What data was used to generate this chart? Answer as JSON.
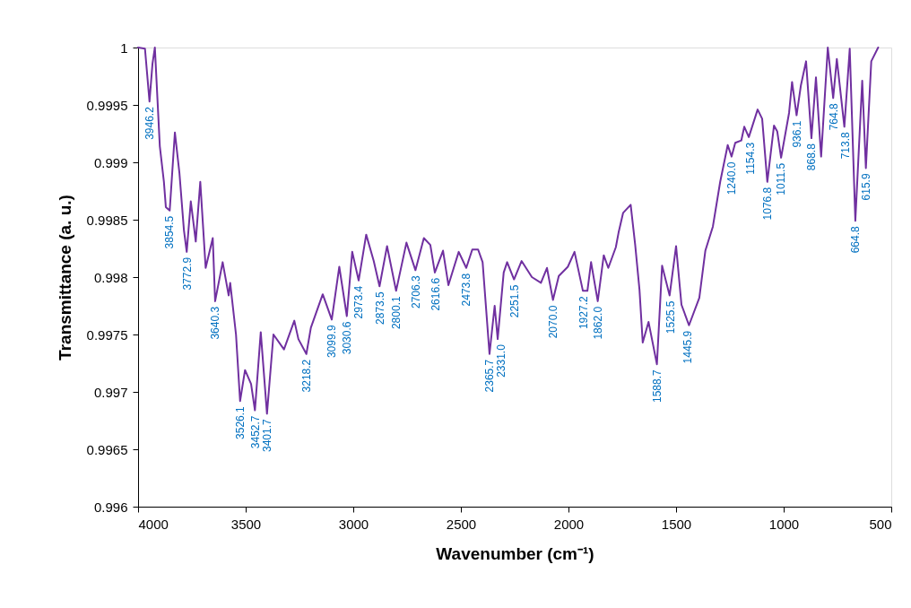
{
  "chart_data": {
    "type": "line",
    "xlabel": "Wavenumber (cm⁻¹)",
    "ylabel": "Transmittance (a. u.)",
    "xlim": [
      4000,
      500
    ],
    "xticks": [
      4000,
      3500,
      3000,
      2500,
      2000,
      1500,
      1000,
      500
    ],
    "ylim": [
      0.996,
      1
    ],
    "yticks": [
      0.996,
      0.9965,
      0.997,
      0.9975,
      0.998,
      0.9985,
      0.999,
      0.9995,
      1
    ],
    "grid": false,
    "marker": "none",
    "line_style": "solid",
    "series": [
      {
        "color": "#7030a0",
        "x": [
          4000,
          3968,
          3947,
          3933,
          3922,
          3899,
          3880,
          3871,
          3853,
          3829,
          3808,
          3787,
          3774,
          3755,
          3732,
          3711,
          3686,
          3653,
          3642,
          3607,
          3579,
          3572,
          3545,
          3526,
          3503,
          3475,
          3457,
          3430,
          3401,
          3371,
          3322,
          3274,
          3255,
          3218,
          3197,
          3142,
          3100,
          3065,
          3030,
          3005,
          2975,
          2940,
          2905,
          2878,
          2843,
          2801,
          2753,
          2711,
          2672,
          2642,
          2621,
          2583,
          2558,
          2510,
          2475,
          2447,
          2420,
          2399,
          2367,
          2343,
          2329,
          2301,
          2285,
          2253,
          2218,
          2170,
          2128,
          2100,
          2072,
          2045,
          2003,
          1972,
          1933,
          1912,
          1895,
          1864,
          1836,
          1815,
          1780,
          1767,
          1746,
          1711,
          1690,
          1670,
          1655,
          1628,
          1589,
          1565,
          1530,
          1500,
          1475,
          1440,
          1392,
          1364,
          1329,
          1295,
          1260,
          1242,
          1225,
          1197,
          1183,
          1162,
          1121,
          1100,
          1076,
          1045,
          1030,
          1012,
          975,
          961,
          940,
          920,
          896,
          871,
          850,
          826,
          795,
          770,
          753,
          718,
          693,
          667,
          635,
          618,
          593,
          561
        ],
        "values": [
          1.0,
          0.99999,
          0.99953,
          0.99986,
          1.0,
          0.99914,
          0.99883,
          0.99861,
          0.99858,
          0.99926,
          0.99891,
          0.99841,
          0.99822,
          0.99866,
          0.99831,
          0.99883,
          0.99808,
          0.99834,
          0.99779,
          0.99813,
          0.99784,
          0.99795,
          0.9975,
          0.99692,
          0.99719,
          0.99707,
          0.99684,
          0.99752,
          0.99681,
          0.9975,
          0.99737,
          0.99762,
          0.99746,
          0.99733,
          0.99756,
          0.99785,
          0.99763,
          0.99809,
          0.99766,
          0.99822,
          0.99797,
          0.99837,
          0.99814,
          0.99792,
          0.99827,
          0.99788,
          0.9983,
          0.99806,
          0.99834,
          0.99828,
          0.99804,
          0.99823,
          0.99793,
          0.99822,
          0.99808,
          0.99824,
          0.99824,
          0.99813,
          0.99733,
          0.99775,
          0.99746,
          0.99804,
          0.99813,
          0.99798,
          0.99814,
          0.998,
          0.99795,
          0.99808,
          0.9978,
          0.99801,
          0.99809,
          0.99822,
          0.99788,
          0.99788,
          0.99813,
          0.99779,
          0.99819,
          0.99808,
          0.99826,
          0.99839,
          0.99856,
          0.99863,
          0.99828,
          0.99789,
          0.99743,
          0.99761,
          0.99724,
          0.9981,
          0.99784,
          0.99827,
          0.99776,
          0.99758,
          0.99782,
          0.99823,
          0.99844,
          0.99883,
          0.99915,
          0.99905,
          0.99917,
          0.99919,
          0.99931,
          0.99922,
          0.99946,
          0.99938,
          0.99883,
          0.99932,
          0.99927,
          0.99904,
          0.99943,
          0.9997,
          0.99941,
          0.99967,
          0.99988,
          0.99921,
          0.99974,
          0.99905,
          1.0,
          0.99956,
          0.9999,
          0.99931,
          0.99999,
          0.99849,
          0.99971,
          0.99895,
          0.99988,
          1.0
        ]
      }
    ],
    "annotations": [
      {
        "text": "3946.2",
        "x": 3946.2,
        "y": 0.99953
      },
      {
        "text": "3854.5",
        "x": 3854.5,
        "y": 0.99858
      },
      {
        "text": "3772.9",
        "x": 3772.9,
        "y": 0.99822
      },
      {
        "text": "3640.3",
        "x": 3640.3,
        "y": 0.99779
      },
      {
        "text": "3526.1",
        "x": 3526.1,
        "y": 0.99692
      },
      {
        "text": "3452.7",
        "x": 3452.7,
        "y": 0.99684
      },
      {
        "text": "3401.7",
        "x": 3401.7,
        "y": 0.99681
      },
      {
        "text": "3218.2",
        "x": 3218.2,
        "y": 0.99733
      },
      {
        "text": "3099.9",
        "x": 3099.9,
        "y": 0.99763
      },
      {
        "text": "3030.6",
        "x": 3030.6,
        "y": 0.99766
      },
      {
        "text": "2973.4",
        "x": 2973.4,
        "y": 0.99797
      },
      {
        "text": "2873.5",
        "x": 2873.5,
        "y": 0.99792
      },
      {
        "text": "2800.1",
        "x": 2800.1,
        "y": 0.99788
      },
      {
        "text": "2706.3",
        "x": 2706.3,
        "y": 0.99806
      },
      {
        "text": "2616.6",
        "x": 2616.6,
        "y": 0.99804
      },
      {
        "text": "2473.8",
        "x": 2473.8,
        "y": 0.99808
      },
      {
        "text": "2365.7",
        "x": 2365.7,
        "y": 0.99733
      },
      {
        "text": "2331.0",
        "x": 2331.0,
        "y": 0.99746
      },
      {
        "text": "2251.5",
        "x": 2251.5,
        "y": 0.99798
      },
      {
        "text": "2070.0",
        "x": 2070.0,
        "y": 0.9978
      },
      {
        "text": "1927.2",
        "x": 1927.2,
        "y": 0.99788
      },
      {
        "text": "1862.0",
        "x": 1862.0,
        "y": 0.99779
      },
      {
        "text": "1588.7",
        "x": 1588.7,
        "y": 0.99724
      },
      {
        "text": "1525.5",
        "x": 1525.5,
        "y": 0.99784
      },
      {
        "text": "1445.9",
        "x": 1445.9,
        "y": 0.99758
      },
      {
        "text": "1240.0",
        "x": 1240.0,
        "y": 0.99905
      },
      {
        "text": "1154.3",
        "x": 1154.3,
        "y": 0.99922
      },
      {
        "text": "1076.8",
        "x": 1076.8,
        "y": 0.99883
      },
      {
        "text": "1011.5",
        "x": 1011.5,
        "y": 0.99904
      },
      {
        "text": "936.1",
        "x": 936.1,
        "y": 0.99941
      },
      {
        "text": "868.8",
        "x": 868.8,
        "y": 0.99921
      },
      {
        "text": "764.8",
        "x": 764.8,
        "y": 0.99956
      },
      {
        "text": "713.8",
        "x": 713.8,
        "y": 0.99931
      },
      {
        "text": "664.8",
        "x": 664.8,
        "y": 0.99849
      },
      {
        "text": "615.9",
        "x": 615.9,
        "y": 0.99895
      }
    ]
  }
}
